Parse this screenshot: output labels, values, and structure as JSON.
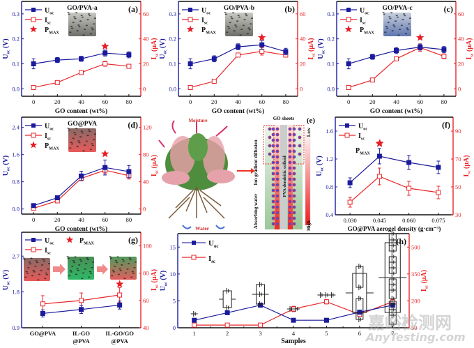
{
  "colors": {
    "u": "#1a1a9c",
    "i": "#e8262a",
    "star": "#e81c24",
    "box": "#222222"
  },
  "labels": {
    "u_legend": "U",
    "u_sub": "oc",
    "i_legend": "I",
    "i_sub": "sc",
    "p_legend": "P",
    "p_sub": "MAX"
  },
  "chart_data": [
    {
      "id": "a",
      "type": "line",
      "panel_label": "(a)",
      "title": "GO/PVA-a",
      "inset_color": "gray",
      "xlabel": "GO content (wt%)",
      "ylabel_left": "Uoc (V)",
      "ylabel_right": "Isc (μA)",
      "categories": [
        "0",
        "20",
        "40",
        "60",
        "80"
      ],
      "x": [
        0,
        20,
        40,
        60,
        80
      ],
      "xlim": [
        -10,
        90
      ],
      "ylim_left": [
        -0.03,
        0.35
      ],
      "yticks_left": [
        0.0,
        0.1,
        0.2,
        0.3
      ],
      "ytick_labels_left": [
        "0.0",
        "0.1",
        "0.2",
        "0.3"
      ],
      "ylim_right": [
        -6,
        70
      ],
      "yticks_right": [
        0,
        20,
        40,
        60
      ],
      "ytick_labels_right": [
        "0",
        "20",
        "40",
        "60"
      ],
      "series": [
        {
          "name": "Uoc",
          "axis": "left",
          "values": [
            0.1,
            0.115,
            0.12,
            0.143,
            0.136
          ],
          "err": [
            0.02,
            0.01,
            0.01,
            0.012,
            0.012
          ]
        },
        {
          "name": "Isc",
          "axis": "right",
          "values": [
            1,
            5,
            13,
            20,
            18
          ],
          "err": [
            0.5,
            0.6,
            0.8,
            2,
            1.5
          ]
        }
      ],
      "pmax": {
        "x": 60,
        "y_right": 34
      }
    },
    {
      "id": "b",
      "type": "line",
      "panel_label": "(b)",
      "title": "GO/PVA-b",
      "inset_color": "gray",
      "xlabel": "GO content (wt%)",
      "ylabel_left": "Uoc (V)",
      "ylabel_right": "Isc (μA)",
      "categories": [
        "0",
        "20",
        "40",
        "60",
        "80"
      ],
      "x": [
        0,
        20,
        40,
        60,
        80
      ],
      "xlim": [
        -10,
        90
      ],
      "ylim_left": [
        -0.03,
        0.35
      ],
      "yticks_left": [
        0.0,
        0.1,
        0.2,
        0.3
      ],
      "ytick_labels_left": [
        "0.0",
        "0.1",
        "0.2",
        "0.3"
      ],
      "ylim_right": [
        -6,
        70
      ],
      "yticks_right": [
        0,
        20,
        40,
        60
      ],
      "ytick_labels_right": [
        "0",
        "20",
        "40",
        "60"
      ],
      "series": [
        {
          "name": "Uoc",
          "axis": "left",
          "values": [
            0.1,
            0.12,
            0.168,
            0.176,
            0.149
          ],
          "err": [
            0.02,
            0.012,
            0.012,
            0.018,
            0.013
          ]
        },
        {
          "name": "Isc",
          "axis": "right",
          "values": [
            1,
            6,
            27,
            30,
            27
          ],
          "err": [
            0.5,
            0.6,
            1.5,
            3,
            1.5
          ]
        }
      ],
      "pmax": {
        "x": 60,
        "y_right": 41
      }
    },
    {
      "id": "c",
      "type": "line",
      "panel_label": "(c)",
      "title": "GO/PVA-c",
      "inset_color": "blue",
      "xlabel": "GO content (wt%)",
      "ylabel_left": "Uoc (V)",
      "ylabel_right": "Isc (μA)",
      "categories": [
        "0",
        "20",
        "40",
        "60",
        "80"
      ],
      "x": [
        0,
        20,
        40,
        60,
        80
      ],
      "xlim": [
        -10,
        90
      ],
      "ylim_left": [
        -0.03,
        0.35
      ],
      "yticks_left": [
        0.0,
        0.1,
        0.2,
        0.3
      ],
      "ytick_labels_left": [
        "0.0",
        "0.1",
        "0.2",
        "0.3"
      ],
      "ylim_right": [
        -6,
        70
      ],
      "yticks_right": [
        0,
        20,
        40,
        60
      ],
      "ytick_labels_right": [
        "0",
        "20",
        "40",
        "60"
      ],
      "series": [
        {
          "name": "Uoc",
          "axis": "left",
          "values": [
            0.1,
            0.128,
            0.153,
            0.167,
            0.157
          ],
          "err": [
            0.02,
            0.01,
            0.012,
            0.012,
            0.012
          ]
        },
        {
          "name": "Isc",
          "axis": "right",
          "values": [
            1,
            7,
            24,
            33,
            26
          ],
          "err": [
            0.5,
            0.6,
            1.5,
            3,
            2
          ]
        }
      ],
      "pmax": {
        "x": 60,
        "y_right": 41
      }
    },
    {
      "id": "d",
      "type": "line",
      "panel_label": "(d)",
      "title": "GO@PVA",
      "inset_color": "red",
      "xlabel": "GO content (wt%)",
      "ylabel_left": "Uoc (V)",
      "ylabel_right": "Isc (μA)",
      "categories": [
        "0",
        "20",
        "40",
        "60",
        "80"
      ],
      "x": [
        0,
        20,
        40,
        60,
        80
      ],
      "xlim": [
        -10,
        90
      ],
      "ylim_left": [
        -0.15,
        2.7
      ],
      "yticks_left": [
        0.0,
        0.8,
        1.6,
        2.4
      ],
      "ytick_labels_left": [
        "0.0",
        "0.8",
        "1.6",
        "2.4"
      ],
      "ylim_right": [
        -7.5,
        135
      ],
      "yticks_right": [
        0,
        40,
        80,
        120
      ],
      "ytick_labels_right": [
        "0",
        "40",
        "80",
        "120"
      ],
      "series": [
        {
          "name": "Uoc",
          "axis": "left",
          "values": [
            0.1,
            0.33,
            0.97,
            1.22,
            1.1
          ],
          "err": [
            0.03,
            0.05,
            0.14,
            0.22,
            0.18
          ]
        },
        {
          "name": "Isc",
          "axis": "right",
          "values": [
            1,
            12,
            45,
            57,
            49
          ],
          "err": [
            0.5,
            1,
            3,
            5,
            5
          ]
        }
      ],
      "pmax": {
        "x": 60,
        "y_right": 81
      }
    },
    {
      "id": "f",
      "type": "line",
      "panel_label": "(f)",
      "title": "",
      "xlabel": "GO@PVA aerogel density (g·cm⁻³)",
      "ylabel_left": "Uoc (V)",
      "ylabel_right": "Isc (μA)",
      "categories": [
        "0.030",
        "0.045",
        "0.060",
        "0.075"
      ],
      "x": [
        0.03,
        0.045,
        0.06,
        0.075
      ],
      "xlim": [
        0.0225,
        0.0825
      ],
      "ylim_left": [
        0.4,
        1.8
      ],
      "yticks_left": [
        0.4,
        0.8,
        1.2,
        1.6
      ],
      "ytick_labels_left": [
        "0.4",
        "0.8",
        "1.2",
        "1.6"
      ],
      "ylim_right": [
        30,
        100
      ],
      "yticks_right": [
        30,
        50,
        70,
        90
      ],
      "ytick_labels_right": [
        "30",
        "50",
        "70",
        "90"
      ],
      "series": [
        {
          "name": "Uoc",
          "axis": "left",
          "values": [
            0.86,
            1.24,
            1.15,
            1.08
          ],
          "err": [
            0.07,
            0.11,
            0.1,
            0.09
          ]
        },
        {
          "name": "Isc",
          "axis": "right",
          "values": [
            39,
            57.5,
            49,
            46
          ],
          "err": [
            3.5,
            6,
            5,
            4.5
          ]
        }
      ],
      "pmax": {
        "x": 0.045,
        "y_right": 81
      }
    },
    {
      "id": "g",
      "type": "line",
      "panel_label": "(g)",
      "xlabel": "",
      "ylabel_left": "Uoc (V)",
      "ylabel_right": "Isc (μA)",
      "categories": [
        "GO@PVA",
        "IL-GO\n@PVA",
        "IL-GO/GO\n@PVA"
      ],
      "x": [
        1,
        2,
        3
      ],
      "xlim": [
        0.45,
        3.55
      ],
      "ylim_left": [
        0.9,
        3.3
      ],
      "yticks_left": [
        0.9,
        1.8,
        2.7
      ],
      "ytick_labels_left": [
        "0.9",
        "1.8",
        "2.7"
      ],
      "ylim_right": [
        40,
        110
      ],
      "yticks_right": [
        40,
        60,
        80,
        100
      ],
      "ytick_labels_right": [
        "40",
        "60",
        "80",
        "100"
      ],
      "series": [
        {
          "name": "Uoc",
          "axis": "left",
          "values": [
            1.26,
            1.36,
            1.47
          ],
          "err": [
            0.09,
            0.1,
            0.1
          ]
        },
        {
          "name": "Isc",
          "axis": "right",
          "values": [
            57.5,
            60,
            64
          ],
          "err": [
            6,
            5.5,
            5.5
          ]
        }
      ],
      "pmax": {
        "x": 3,
        "y_right": 72
      }
    },
    {
      "id": "h",
      "type": "line",
      "panel_label": "(h)",
      "xlabel": "Samples",
      "ylabel_left": "Uoc (V)",
      "ylabel_right": "Isc (μA)",
      "categories": [
        "1",
        "2",
        "3",
        "4",
        "5",
        "6",
        "7"
      ],
      "x": [
        1,
        2,
        3,
        4,
        5,
        6,
        7
      ],
      "xlim": [
        0.5,
        7.5
      ],
      "ylim_left": [
        0,
        17.5
      ],
      "yticks_left": [
        0,
        5,
        10,
        15
      ],
      "ytick_labels_left": [
        "0",
        "5",
        "10",
        "15"
      ],
      "ylim_right": [
        50,
        575
      ],
      "yticks_right": [
        50,
        200,
        350,
        500
      ],
      "ytick_labels_right": [
        "50",
        "200",
        "350",
        "500"
      ],
      "series": [
        {
          "name": "Uoc",
          "axis": "left",
          "values": [
            1.4,
            2.8,
            4.2,
            1.4,
            1.4,
            2.9,
            4.2
          ],
          "err": [
            0.1,
            0.1,
            0.3,
            0.1,
            0.1,
            0.2,
            0.3
          ]
        },
        {
          "name": "Isc",
          "axis": "right",
          "values": [
            65,
            65,
            65,
            155,
            195,
            125,
            195
          ],
          "err": [
            3,
            3,
            3,
            15,
            12,
            10,
            12
          ]
        }
      ],
      "circuit_symbols": "series/parallel cell-combination schematics above each sample"
    }
  ],
  "panel_e": {
    "panel_label": "(e)",
    "moisture_label": "Moisture",
    "water_label": "Water",
    "go_sheets_label": "GO sheets",
    "ion_label": "Ion gradient diffusion",
    "absorb_label": "Absorbing water",
    "pva_label": "PVA dendritic colloid",
    "scale_low": "Low",
    "scale_high": "High"
  },
  "watermark": {
    "line1": "嘉峪检测网",
    "line2": "AnyTesting.com"
  }
}
